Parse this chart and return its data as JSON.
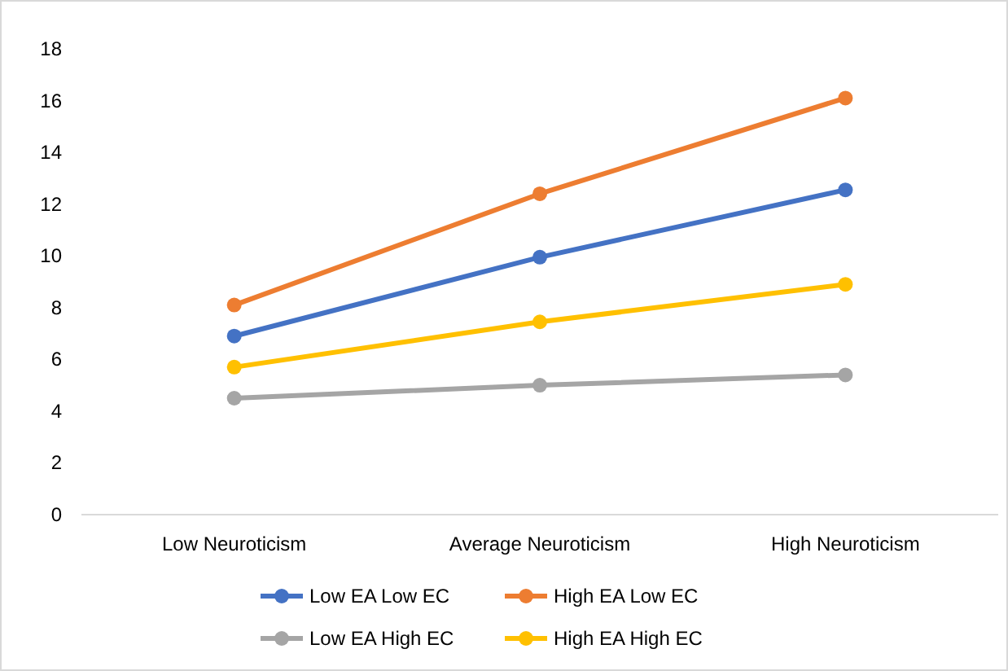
{
  "chart_data": {
    "type": "line",
    "categories": [
      "Low Neuroticism",
      "Average Neuroticism",
      "High Neuroticism"
    ],
    "series": [
      {
        "name": "Low EA Low EC",
        "color": "#4472c4",
        "values": [
          6.9,
          9.95,
          12.55
        ]
      },
      {
        "name": "High EA Low EC",
        "color": "#ed7d31",
        "values": [
          8.1,
          12.4,
          16.1
        ]
      },
      {
        "name": "Low EA High EC",
        "color": "#a5a5a5",
        "values": [
          4.5,
          5.0,
          5.4
        ]
      },
      {
        "name": "High EA High EC",
        "color": "#ffc000",
        "values": [
          5.7,
          7.45,
          8.9
        ]
      }
    ],
    "ylim": [
      0,
      18
    ],
    "yticks": [
      0,
      2,
      4,
      6,
      8,
      10,
      12,
      14,
      16,
      18
    ],
    "grid": false,
    "legend": "bottom",
    "marker": "circle",
    "line_style": "solid"
  }
}
